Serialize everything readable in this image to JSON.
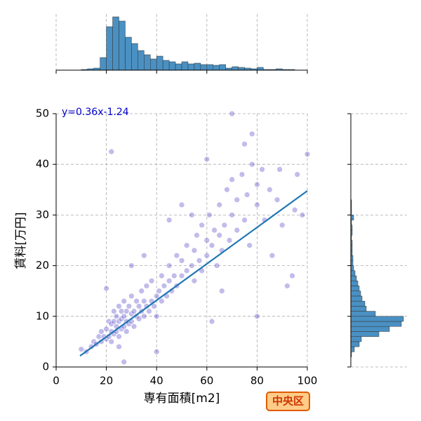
{
  "chart_data": [
    {
      "type": "scatter",
      "xlabel": "専有面積[m2]",
      "ylabel": "賃料[万円]",
      "color": "#3322bb",
      "x": [
        10,
        12,
        14,
        15,
        16,
        17,
        18,
        18,
        19,
        20,
        20,
        21,
        21,
        22,
        22,
        22,
        23,
        23,
        23,
        24,
        24,
        24,
        25,
        25,
        25,
        26,
        26,
        26,
        27,
        27,
        27,
        28,
        28,
        28,
        29,
        29,
        30,
        30,
        30,
        31,
        31,
        32,
        32,
        33,
        33,
        34,
        34,
        35,
        35,
        36,
        36,
        37,
        38,
        38,
        39,
        40,
        40,
        41,
        42,
        42,
        43,
        44,
        45,
        45,
        46,
        47,
        48,
        48,
        50,
        50,
        52,
        52,
        54,
        55,
        55,
        56,
        57,
        58,
        58,
        60,
        60,
        61,
        62,
        63,
        64,
        65,
        65,
        66,
        67,
        68,
        69,
        70,
        70,
        72,
        72,
        74,
        75,
        76,
        77,
        78,
        80,
        80,
        80,
        82,
        83,
        85,
        86,
        88,
        89,
        90,
        92,
        94,
        96,
        100,
        98,
        22,
        27,
        70,
        75,
        60,
        50,
        45,
        35,
        30,
        20,
        40,
        25,
        62,
        66,
        54,
        78,
        95
      ],
      "y": [
        3.5,
        3,
        4,
        5,
        4.5,
        6,
        5,
        7,
        6,
        5.5,
        7.5,
        6,
        9,
        7,
        8.5,
        5,
        6.5,
        9,
        11,
        7,
        8,
        10,
        6,
        9,
        12,
        7.5,
        9.5,
        11,
        8,
        10,
        13,
        7,
        9,
        11,
        8.5,
        12,
        9,
        10.5,
        14,
        8,
        11,
        10,
        13,
        9.5,
        12,
        11,
        15,
        10,
        13,
        12,
        16,
        11,
        13,
        17,
        12,
        14,
        10,
        15,
        13,
        18,
        16,
        14,
        17,
        20,
        15,
        18,
        16,
        22,
        18,
        21,
        19,
        24,
        20,
        17,
        23,
        26,
        21,
        28,
        19,
        22,
        25,
        30,
        24,
        27,
        20,
        26,
        32,
        23,
        28,
        35,
        25,
        30,
        37,
        27,
        33,
        38,
        29,
        34,
        24,
        40,
        32,
        36,
        10,
        39,
        29,
        35,
        22,
        33,
        39,
        28,
        16,
        18,
        38,
        42,
        30,
        42.5,
        1,
        50,
        44,
        41,
        32,
        29,
        22,
        20,
        15.5,
        3,
        4,
        9,
        15,
        30,
        46,
        31
      ],
      "xlim": [
        0,
        100
      ],
      "ylim": [
        0,
        50
      ],
      "xticks": [
        0,
        20,
        40,
        60,
        80,
        100
      ],
      "yticks": [
        0,
        10,
        20,
        30,
        40,
        50
      ],
      "grid": true,
      "regression": {
        "slope": 0.36,
        "intercept": -1.24,
        "x_range": [
          9.5,
          100
        ],
        "label": "y=0.36x-1.24",
        "color": "#1f77b4"
      },
      "badge": "中央区"
    },
    {
      "type": "histogram",
      "orientation": "vertical",
      "color": "#4a90c2",
      "bins": [
        10,
        12.5,
        15,
        17.5,
        20,
        22.5,
        25,
        27.5,
        30,
        32.5,
        35,
        37.5,
        40,
        42.5,
        45,
        47.5,
        50,
        52.5,
        55,
        57.5,
        60,
        62.5,
        65,
        67.5,
        70,
        72.5,
        75,
        77.5,
        80,
        82.5,
        85,
        87.5,
        90,
        92.5,
        95,
        97.5
      ],
      "counts": [
        1,
        2,
        3,
        18,
        62,
        76,
        70,
        47,
        38,
        28,
        22,
        16,
        20,
        14,
        12,
        9,
        12,
        9,
        10,
        8,
        8,
        7,
        8,
        3,
        5,
        4,
        3,
        2,
        4,
        1,
        1,
        2,
        1,
        1,
        0
      ],
      "xlim": [
        0,
        100
      ],
      "ylim": [
        0,
        80
      ],
      "xticks": [
        0,
        20,
        40,
        60,
        80,
        100
      ],
      "grid": true
    },
    {
      "type": "histogram",
      "orientation": "horizontal",
      "color": "#4a90c2",
      "bins": [
        2,
        3,
        4,
        5,
        6,
        7,
        8,
        9,
        10,
        11,
        12,
        13,
        14,
        15,
        16,
        17,
        18,
        19,
        20,
        21,
        22,
        23,
        24,
        25,
        26,
        27,
        28,
        29,
        30,
        31,
        32,
        33
      ],
      "counts": [
        1,
        5,
        12,
        15,
        40,
        55,
        72,
        75,
        35,
        22,
        20,
        16,
        14,
        12,
        10,
        8,
        6,
        4,
        3,
        3,
        2,
        2,
        2,
        1,
        2,
        2,
        1,
        4,
        1,
        1,
        1
      ],
      "ylim": [
        0,
        50
      ],
      "xlim": [
        0,
        80
      ],
      "yticks": [
        0,
        10,
        20,
        30,
        40,
        50
      ],
      "grid": true
    }
  ]
}
